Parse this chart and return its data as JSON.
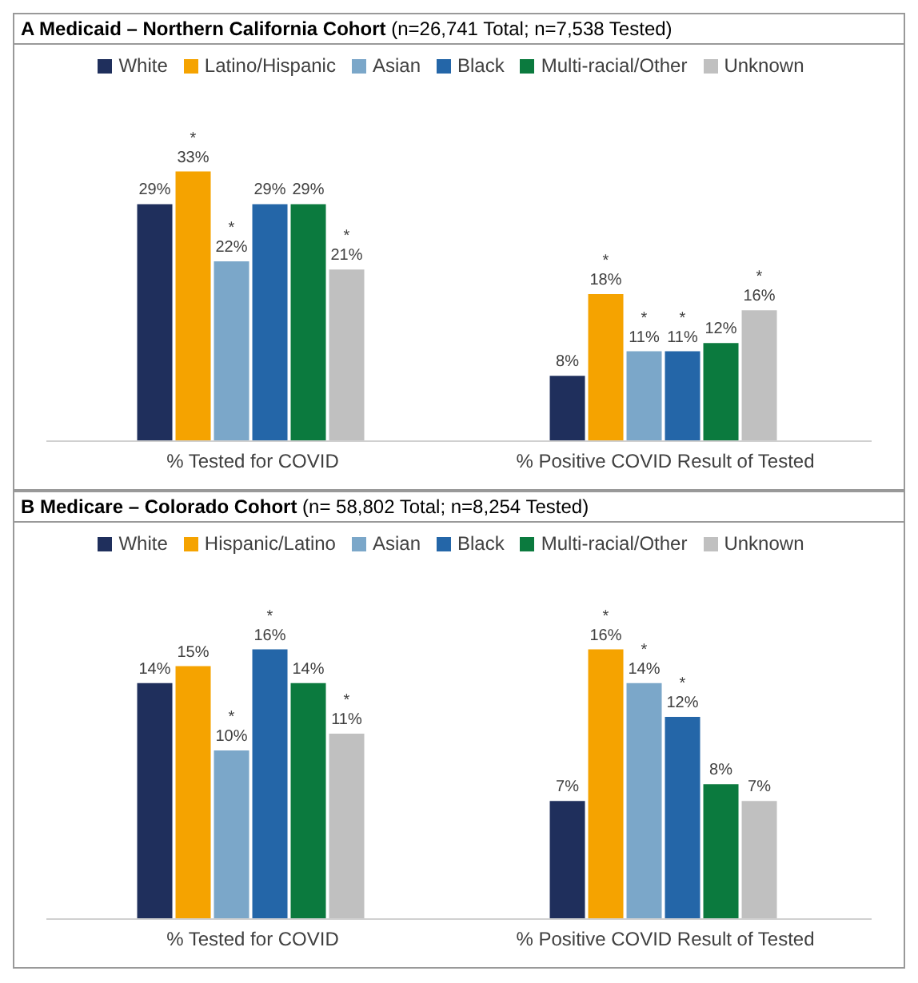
{
  "chart_data": [
    {
      "type": "bar",
      "title": "A Medicaid – Northern California Cohort",
      "subtitle": "(n=26,741 Total; n=7,538 Tested)",
      "categories": [
        "% Tested for COVID",
        "% Positive COVID Result of Tested"
      ],
      "legend": "top",
      "grid": false,
      "series": [
        {
          "name": "White",
          "color": "#1f2f5c",
          "values": [
            29,
            8
          ],
          "value_labels": [
            "29%",
            "8%"
          ]
        },
        {
          "name": "Latino/Hispanic",
          "color": "#f5a300",
          "values": [
            33,
            18
          ],
          "value_labels": [
            "*\n33%",
            "*\n18%"
          ]
        },
        {
          "name": "Asian",
          "color": "#7ba7c9",
          "values": [
            22,
            11
          ],
          "value_labels": [
            "*\n22%",
            "*\n11%"
          ]
        },
        {
          "name": "Black",
          "color": "#2466a8",
          "values": [
            29,
            11
          ],
          "value_labels": [
            "29%",
            "*\n11%"
          ]
        },
        {
          "name": "Multi-racial/Other",
          "color": "#0b7a3e",
          "values": [
            29,
            12
          ],
          "value_labels": [
            "29%",
            "12%"
          ]
        },
        {
          "name": "Unknown",
          "color": "#c0c0c0",
          "values": [
            21,
            16
          ],
          "value_labels": [
            "*\n21%",
            "*\n16%"
          ]
        }
      ]
    },
    {
      "type": "bar",
      "title": "B Medicare – Colorado Cohort",
      "subtitle": "(n= 58,802 Total; n=8,254 Tested)",
      "categories": [
        "% Tested for COVID",
        "% Positive COVID Result of Tested"
      ],
      "legend": "top",
      "grid": false,
      "series": [
        {
          "name": "White",
          "color": "#1f2f5c",
          "values": [
            14,
            7
          ],
          "value_labels": [
            "14%",
            "7%"
          ]
        },
        {
          "name": "Hispanic/Latino",
          "color": "#f5a300",
          "values": [
            15,
            16
          ],
          "value_labels": [
            "15%",
            "*\n16%"
          ]
        },
        {
          "name": "Asian",
          "color": "#7ba7c9",
          "values": [
            10,
            14
          ],
          "value_labels": [
            "*\n10%",
            "*\n14%"
          ]
        },
        {
          "name": "Black",
          "color": "#2466a8",
          "values": [
            16,
            12
          ],
          "value_labels": [
            "*\n16%",
            "*\n12%"
          ]
        },
        {
          "name": "Multi-racial/Other",
          "color": "#0b7a3e",
          "values": [
            14,
            8
          ],
          "value_labels": [
            "14%",
            "8%"
          ]
        },
        {
          "name": "Unknown",
          "color": "#c0c0c0",
          "values": [
            11,
            7
          ],
          "value_labels": [
            "*\n11%",
            "7%"
          ]
        }
      ]
    }
  ]
}
